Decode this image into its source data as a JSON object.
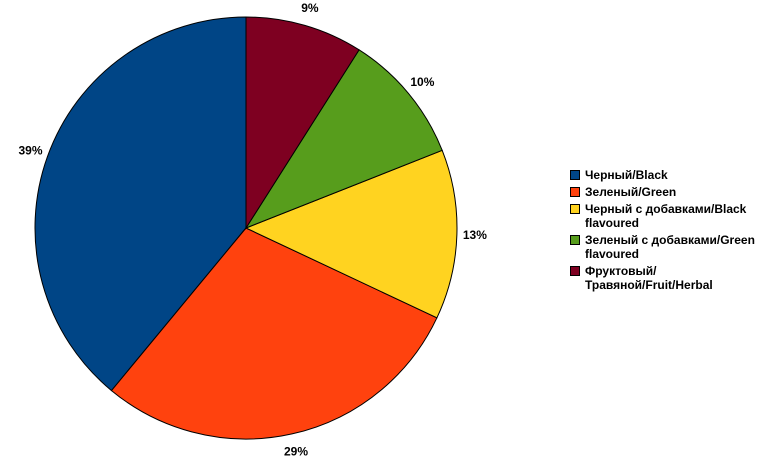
{
  "chart_data": {
    "type": "pie",
    "title": "",
    "slices": [
      {
        "label": "Черный/Black",
        "value": 39,
        "pct_label": "39%",
        "color": "#004586"
      },
      {
        "label": "Зеленый/Green",
        "value": 29,
        "pct_label": "29%",
        "color": "#ff420e"
      },
      {
        "label": "Черный с добавками/Black flavoured",
        "value": 13,
        "pct_label": "13%",
        "color": "#ffd320"
      },
      {
        "label": "Зеленый с добавками/Green flavoured",
        "value": 10,
        "pct_label": "10%",
        "color": "#579d1c"
      },
      {
        "label": "Фруктовый/Травяной/Fruit/Herbal",
        "value": 9,
        "pct_label": "9%",
        "color": "#7e0021"
      }
    ],
    "legend_position": "right"
  }
}
